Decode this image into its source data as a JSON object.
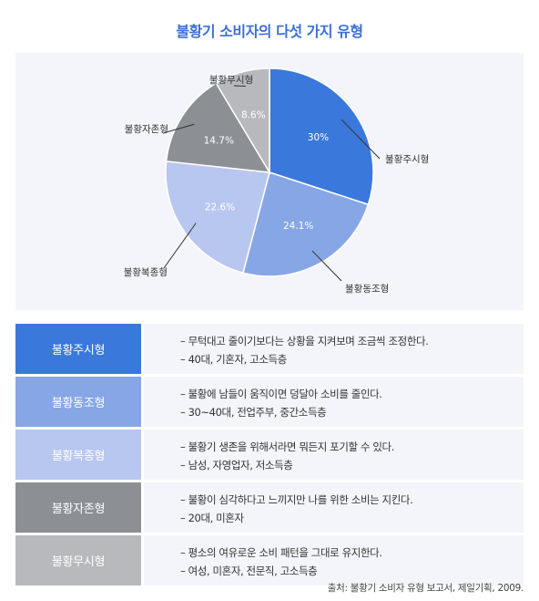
{
  "title": "불황기 소비자의 다섯 가지 유형",
  "chart_data": {
    "type": "pie",
    "title": "불황기 소비자의 다섯 가지 유형",
    "slices": [
      {
        "label": "불황주시형",
        "value": 30,
        "value_label": "30%",
        "color": "#3a78db"
      },
      {
        "label": "불황동조형",
        "value": 24.1,
        "value_label": "24.1%",
        "color": "#87a6e6"
      },
      {
        "label": "불황복종형",
        "value": 22.6,
        "value_label": "22.6%",
        "color": "#b8c7f0"
      },
      {
        "label": "불황자존형",
        "value": 14.7,
        "value_label": "14.7%",
        "color": "#8c8f93"
      },
      {
        "label": "불황무시형",
        "value": 8.6,
        "value_label": "8.6%",
        "color": "#b8b9bc"
      }
    ]
  },
  "table": {
    "rows": [
      {
        "label": "불황주시형",
        "color": "#3a78db",
        "line1": "– 무턱대고 줄이기보다는 상황을 지켜보며 조금씩 조정한다.",
        "line2": "– 40대, 기혼자, 고소득층"
      },
      {
        "label": "불황동조형",
        "color": "#87a6e6",
        "line1": "– 불황에 남들이 움직이면 덩달아 소비를 줄인다.",
        "line2": "– 30~40대, 전업주부, 중간소득층"
      },
      {
        "label": "불황복종형",
        "color": "#b8c7f0",
        "line1": "– 불황기 생존을 위해서라면 뭐든지 포기할 수 있다.",
        "line2": "– 남성, 자영업자, 저소득층"
      },
      {
        "label": "불황자존형",
        "color": "#8c8f93",
        "line1": "– 불황이 심각하다고 느끼지만 나를 위한 소비는 지킨다.",
        "line2": "– 20대, 미혼자"
      },
      {
        "label": "불황무시형",
        "color": "#b8b9bc",
        "line1": "– 평소의 여유로운 소비 패턴을 그대로 유지한다.",
        "line2": "– 여성, 미혼자, 전문직, 고소득층"
      }
    ]
  },
  "source": "출처: 불황기 소비자 유형 보고서, 제일기획, 2009."
}
